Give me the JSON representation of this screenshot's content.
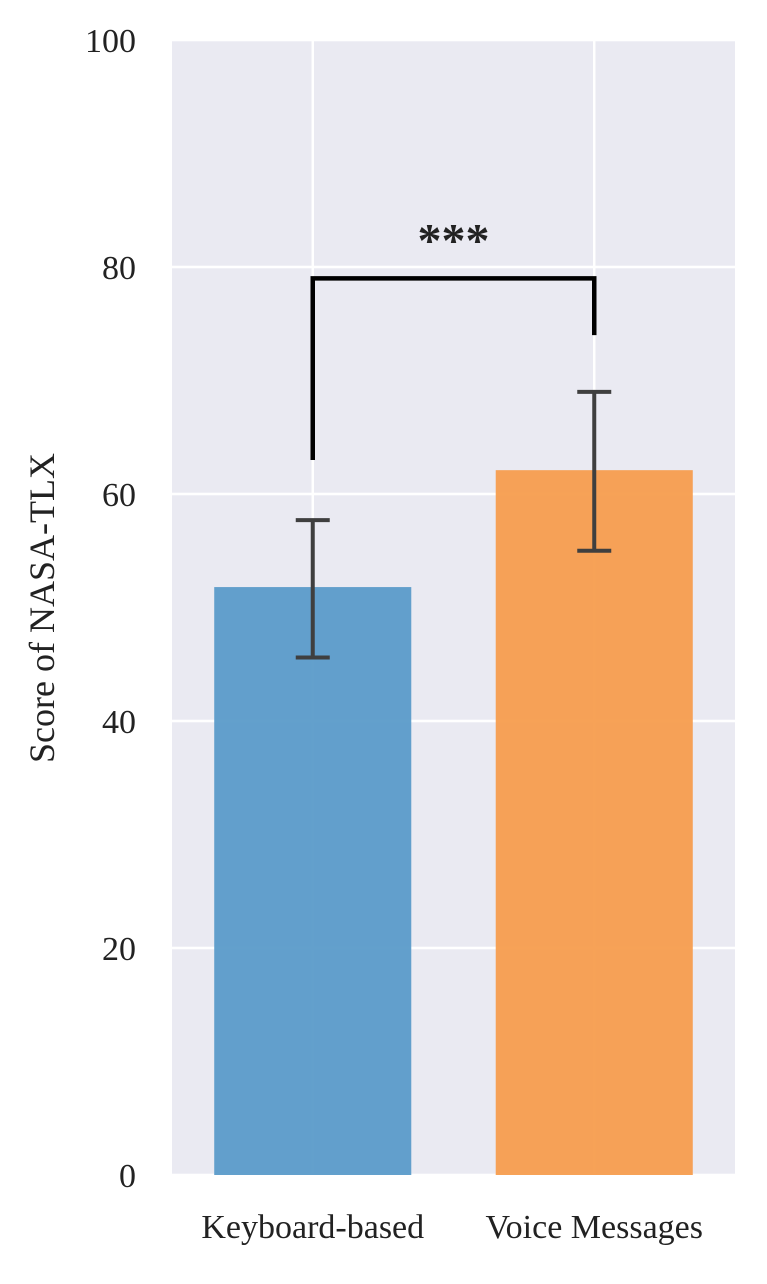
{
  "chart_data": {
    "type": "bar",
    "categories": [
      "Keyboard-based",
      "Voice Messages"
    ],
    "values": [
      51.8,
      62.1
    ],
    "error_low": [
      45.6,
      55.0
    ],
    "error_high": [
      57.7,
      69.0
    ],
    "colors": [
      "#5b9bc9",
      "#f79d4e"
    ],
    "xlabel": "",
    "ylabel": "Score of NASA-TLX",
    "ylim": [
      0,
      100
    ],
    "yticks": [
      0,
      20,
      40,
      60,
      80,
      100
    ],
    "grid": true,
    "background_color": "#eaeaf2",
    "significance": {
      "label": "***",
      "from": "Keyboard-based",
      "to": "Voice Messages",
      "bracket_top": 79,
      "left_end": 63,
      "right_end": 74
    }
  }
}
